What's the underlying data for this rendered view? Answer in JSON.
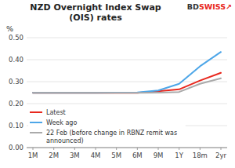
{
  "chart_data": {
    "type": "line",
    "title": "NZD Overnight Index Swap\n(OIS) rates",
    "y_label": "%",
    "categories": [
      "1M",
      "2M",
      "3M",
      "4M",
      "5M",
      "6M",
      "9M",
      "1Y",
      "18m",
      "2yr"
    ],
    "series": [
      {
        "name": "Latest",
        "color": "#e8281e",
        "values": [
          0.249,
          0.249,
          0.249,
          0.249,
          0.249,
          0.249,
          0.256,
          0.265,
          0.305,
          0.34
        ]
      },
      {
        "name": "Week ago",
        "color": "#4da6e8",
        "values": [
          0.249,
          0.249,
          0.249,
          0.249,
          0.25,
          0.251,
          0.26,
          0.29,
          0.37,
          0.435
        ]
      },
      {
        "name": "22 Feb (before change in RBNZ remit was\nannounced)",
        "color": "#aaaaaa",
        "values": [
          0.249,
          0.249,
          0.249,
          0.249,
          0.249,
          0.249,
          0.25,
          0.253,
          0.29,
          0.315
        ]
      }
    ],
    "ylim": [
      0.0,
      0.5
    ],
    "yticks": [
      {
        "value": 0.0,
        "label": "0.00"
      },
      {
        "value": 0.1,
        "label": "0.10"
      },
      {
        "value": 0.2,
        "label": "0.20"
      },
      {
        "value": 0.3,
        "label": "0.30"
      },
      {
        "value": 0.4,
        "label": "0.40"
      },
      {
        "value": 0.5,
        "label": "0.50"
      }
    ],
    "grid": true,
    "legend": "lower left",
    "annotations": [
      {
        "text": "BD",
        "color": "#333333"
      },
      {
        "text": "SWISS",
        "color": "#e8281e"
      },
      {
        "text": "↗",
        "color": "#e8281e"
      }
    ]
  }
}
